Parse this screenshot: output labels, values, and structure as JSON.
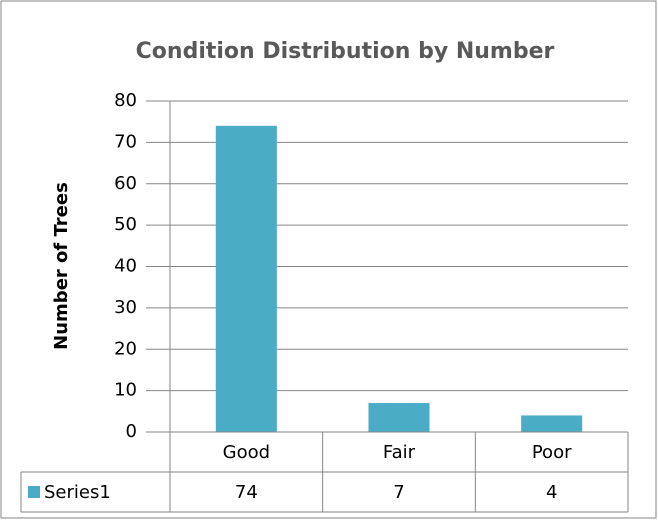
{
  "chart_data": {
    "type": "bar",
    "title": "Condition Distribution by Number",
    "y_label": "Number of Trees",
    "categories": [
      "Good",
      "Fair",
      "Poor"
    ],
    "series": [
      {
        "name": "Series1",
        "color": "#4bacc6",
        "values": [
          74,
          7,
          4
        ]
      }
    ],
    "ylim": [
      0,
      80
    ],
    "yticks": [
      0,
      10,
      20,
      30,
      40,
      50,
      60,
      70,
      80
    ],
    "grid": true,
    "data_table": true
  }
}
